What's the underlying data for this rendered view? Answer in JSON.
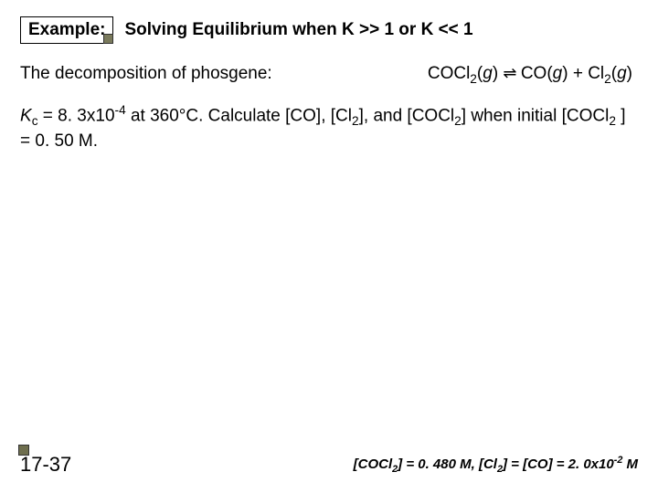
{
  "example_label": "Example:",
  "title": "Solving Equilibrium when K >> 1 or K << 1",
  "line1_left": "The decomposition of phosgene:",
  "eq": {
    "r1a": "COCl",
    "r1b": "2",
    "r1c": "(",
    "r1d": "g",
    "r1e": ")",
    "arr": "⇌",
    "p1a": "CO(",
    "p1b": "g",
    "p1c": ")  +  Cl",
    "p1d": "2",
    "p1e": "(",
    "p1f": "g",
    "p1g": ")"
  },
  "line2": {
    "a": "K",
    "b": "c",
    "c": " = 8. 3x10",
    "d": "-4",
    "e": " at 360°C. Calculate [CO], [Cl",
    "f": "2",
    "g": "], and [COCl",
    "h": "2",
    "i": "] when initial [COCl",
    "j": "2",
    "k": " ] = 0. 50 M."
  },
  "page_num": "17-37",
  "answer": {
    "a": "[COCl",
    "b": "2",
    "c": "] = 0. 480 ",
    "d": "M",
    "e": ", [Cl",
    "f": "2",
    "g": "] = [CO] = 2. 0x10",
    "h": "-2",
    "i": " ",
    "j": "M"
  },
  "colors": {
    "bg": "#ffffff",
    "text": "#000000",
    "box_fill": "#7a7a5c"
  },
  "fonts": {
    "title_pt": 19,
    "body_pt": 19,
    "pagenum_pt": 22,
    "answer_pt": 15
  }
}
